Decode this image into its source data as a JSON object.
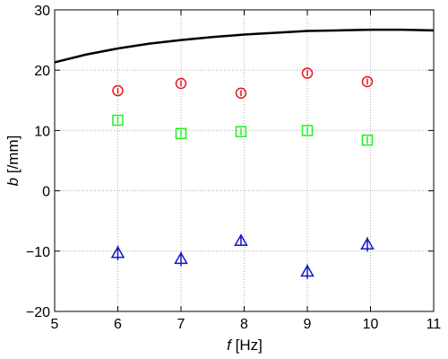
{
  "chart_data": {
    "type": "scatter",
    "title": "",
    "xlabel_var": "f",
    "xlabel_unit": " [Hz]",
    "ylabel_var": "b",
    "ylabel_unit": " [/mm]",
    "xlim": [
      5,
      11
    ],
    "ylim": [
      -20,
      30
    ],
    "xticks": [
      5,
      6,
      7,
      8,
      9,
      10,
      11
    ],
    "yticks": [
      -20,
      -10,
      0,
      10,
      20,
      30
    ],
    "grid": true,
    "series": [
      {
        "marker": "circle",
        "color": "#e8141e",
        "x": [
          6,
          7,
          7.95,
          9,
          9.95
        ],
        "y": [
          16.6,
          17.8,
          16.2,
          19.5,
          18.1
        ],
        "err": [
          0.5,
          0.5,
          0.5,
          0.5,
          0.5
        ]
      },
      {
        "marker": "square",
        "color": "#22ee22",
        "x": [
          6,
          7,
          7.95,
          9,
          9.95
        ],
        "y": [
          11.7,
          9.5,
          9.8,
          10,
          8.4
        ],
        "err": [
          0.6,
          0.6,
          0.6,
          0.6,
          0.6
        ]
      },
      {
        "marker": "triangle",
        "color": "#1414c8",
        "x": [
          6,
          7,
          7.95,
          9,
          9.95
        ],
        "y": [
          -10.3,
          -11.3,
          -8.3,
          -13.4,
          -8.9
        ],
        "err": [
          1.2,
          1.2,
          0.8,
          1.2,
          1.2
        ]
      }
    ],
    "curve": {
      "color": "#000000",
      "x": [
        5,
        5.5,
        6,
        6.5,
        7,
        7.5,
        8,
        8.5,
        9,
        9.5,
        10,
        10.5,
        11
      ],
      "y": [
        21.3,
        22.6,
        23.6,
        24.4,
        25.0,
        25.5,
        25.9,
        26.2,
        26.5,
        26.6,
        26.7,
        26.7,
        26.6
      ]
    }
  }
}
